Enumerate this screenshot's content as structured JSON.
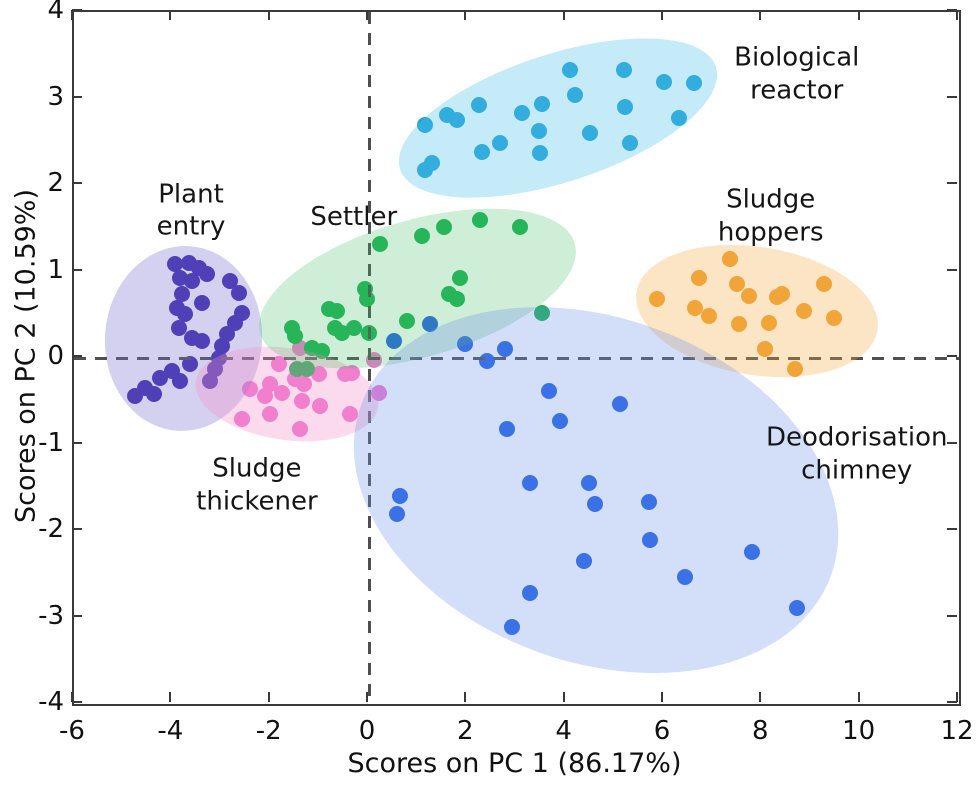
{
  "chart_data": {
    "type": "scatter",
    "title": "",
    "xlabel": "Scores on PC 1 (86.17%)",
    "ylabel": "Scores on PC 2 (10.59%)",
    "xlim": [
      -6,
      12
    ],
    "ylim": [
      -4,
      4
    ],
    "xticks": [
      -6,
      -4,
      -2,
      0,
      2,
      4,
      6,
      8,
      10,
      12
    ],
    "yticks": [
      -4,
      -3,
      -2,
      -1,
      0,
      1,
      2,
      3,
      4
    ],
    "zero_lines": true,
    "grid": false,
    "legend_position": "none",
    "marker_size_px": 16,
    "series": [
      {
        "key": "plant_entry",
        "name": "Plant entry",
        "color": "#3b2bad",
        "ellipse_color": "rgba(120,110,208,0.32)",
        "ellipse": {
          "cx": -3.77,
          "cy": 0.22,
          "rx": 1.6,
          "ry": 1.07,
          "rot_deg": 4
        },
        "label": {
          "text": "Plant\nentry",
          "x": -3.62,
          "y": 1.7
        },
        "points": [
          [
            -3.95,
            1.09
          ],
          [
            -3.66,
            1.1
          ],
          [
            -3.46,
            1.04
          ],
          [
            -3.29,
            0.97
          ],
          [
            -3.84,
            0.93
          ],
          [
            -3.6,
            0.89
          ],
          [
            -2.83,
            0.89
          ],
          [
            -2.64,
            0.75
          ],
          [
            -3.8,
            0.74
          ],
          [
            -3.4,
            0.64
          ],
          [
            -3.9,
            0.58
          ],
          [
            -3.74,
            0.51
          ],
          [
            -2.58,
            0.52
          ],
          [
            -2.73,
            0.41
          ],
          [
            -3.86,
            0.35
          ],
          [
            -3.6,
            0.23
          ],
          [
            -3.4,
            0.2
          ],
          [
            -2.89,
            0.28
          ],
          [
            -2.99,
            0.14
          ],
          [
            -3.05,
            0.0
          ],
          [
            -3.13,
            -0.13
          ],
          [
            -3.64,
            -0.07
          ],
          [
            -4.01,
            -0.15
          ],
          [
            -3.23,
            -0.27
          ],
          [
            -3.84,
            -0.27
          ],
          [
            -4.25,
            -0.23
          ],
          [
            -4.56,
            -0.35
          ],
          [
            -4.37,
            -0.42
          ],
          [
            -4.76,
            -0.44
          ]
        ]
      },
      {
        "key": "sludge_thickener",
        "name": "Sludge thickener",
        "color": "#f07ad2",
        "ellipse_color": "rgba(246,140,200,0.32)",
        "ellipse": {
          "cx": -1.67,
          "cy": -0.41,
          "rx": 1.87,
          "ry": 0.53,
          "rot_deg": 8
        },
        "label": {
          "text": "Sludge\nthickener",
          "x": -2.28,
          "y": -1.47
        },
        "points": [
          [
            -1.83,
            -0.07
          ],
          [
            -1.4,
            0.12
          ],
          [
            -1.5,
            -0.24
          ],
          [
            -1.02,
            -0.19
          ],
          [
            -2.01,
            -0.3
          ],
          [
            -2.42,
            -0.36
          ],
          [
            -1.32,
            -0.3
          ],
          [
            -2.11,
            -0.44
          ],
          [
            -1.77,
            -0.41
          ],
          [
            -1.36,
            -0.5
          ],
          [
            -1.0,
            -0.56
          ],
          [
            -2.01,
            -0.65
          ],
          [
            -2.58,
            -0.71
          ],
          [
            -1.4,
            -0.82
          ],
          [
            -0.49,
            -0.19
          ],
          [
            -0.39,
            -0.65
          ],
          [
            0.1,
            -0.02
          ],
          [
            -0.35,
            -0.17
          ],
          [
            0.2,
            -0.4
          ]
        ]
      },
      {
        "key": "settler",
        "name": "Settler",
        "color": "#1cb254",
        "ellipse_color": "rgba(70,190,100,0.26)",
        "ellipse": {
          "cx": 1.0,
          "cy": 0.81,
          "rx": 3.33,
          "ry": 0.79,
          "rot_deg": -16
        },
        "label": {
          "text": "Settler",
          "x": -0.31,
          "y": 1.63
        },
        "points": [
          [
            0.22,
            1.32
          ],
          [
            1.08,
            1.41
          ],
          [
            1.53,
            1.51
          ],
          [
            2.26,
            1.59
          ],
          [
            3.07,
            1.51
          ],
          [
            1.85,
            0.92
          ],
          [
            1.63,
            0.74
          ],
          [
            1.79,
            0.68
          ],
          [
            -0.08,
            0.8
          ],
          [
            -0.04,
            0.68
          ],
          [
            -0.81,
            0.57
          ],
          [
            -0.65,
            0.54
          ],
          [
            -1.57,
            0.35
          ],
          [
            -1.5,
            0.26
          ],
          [
            -0.69,
            0.35
          ],
          [
            -0.55,
            0.29
          ],
          [
            -0.31,
            0.35
          ],
          [
            0.0,
            0.29
          ],
          [
            0.77,
            0.43
          ],
          [
            3.52,
            0.52
          ],
          [
            -1.16,
            0.12
          ],
          [
            -0.96,
            0.08
          ],
          [
            -1.46,
            -0.13
          ],
          [
            -1.26,
            -0.13
          ]
        ]
      },
      {
        "key": "biological_reactor",
        "name": "Biological reactor",
        "color": "#25a3d8",
        "ellipse_color": "rgba(80,195,235,0.33)",
        "ellipse": {
          "cx": 3.84,
          "cy": 2.78,
          "rx": 3.38,
          "ry": 0.74,
          "rot_deg": -18
        },
        "label": {
          "text": "Biological\nreactor",
          "x": 8.7,
          "y": 3.28
        },
        "points": [
          [
            1.14,
            2.69
          ],
          [
            1.59,
            2.81
          ],
          [
            1.79,
            2.75
          ],
          [
            2.24,
            2.92
          ],
          [
            1.28,
            2.25
          ],
          [
            1.14,
            2.17
          ],
          [
            2.3,
            2.38
          ],
          [
            2.66,
            2.49
          ],
          [
            3.11,
            2.83
          ],
          [
            3.52,
            2.94
          ],
          [
            3.46,
            2.63
          ],
          [
            3.48,
            2.37
          ],
          [
            4.09,
            3.33
          ],
          [
            4.19,
            3.04
          ],
          [
            4.49,
            2.6
          ],
          [
            5.19,
            3.33
          ],
          [
            5.21,
            2.9
          ],
          [
            5.31,
            2.49
          ],
          [
            6.0,
            3.19
          ],
          [
            6.3,
            2.77
          ],
          [
            6.61,
            3.18
          ]
        ]
      },
      {
        "key": "sludge_hoppers",
        "name": "Sludge hoppers",
        "color": "#f0a437",
        "ellipse_color": "rgba(246,170,60,0.30)",
        "ellipse": {
          "cx": 7.89,
          "cy": 0.54,
          "rx": 2.48,
          "ry": 0.74,
          "rot_deg": 9
        },
        "label": {
          "text": "Sludge hoppers",
          "x": 8.17,
          "y": 1.64
        },
        "points": [
          [
            7.34,
            1.15
          ],
          [
            6.71,
            0.92
          ],
          [
            7.48,
            0.86
          ],
          [
            7.73,
            0.72
          ],
          [
            5.86,
            0.68
          ],
          [
            6.63,
            0.58
          ],
          [
            6.91,
            0.49
          ],
          [
            8.3,
            0.7
          ],
          [
            8.4,
            0.74
          ],
          [
            8.85,
            0.54
          ],
          [
            9.25,
            0.86
          ],
          [
            9.46,
            0.46
          ],
          [
            7.52,
            0.39
          ],
          [
            8.13,
            0.41
          ],
          [
            8.05,
            0.1
          ],
          [
            8.66,
            -0.13
          ]
        ]
      },
      {
        "key": "deodorisation_chimney",
        "name": "Deodorisation chimney",
        "color": "#2563e3",
        "ellipse_color": "rgba(110,145,235,0.30)",
        "ellipse": {
          "cx": 4.62,
          "cy": -1.53,
          "rx": 5.08,
          "ry": 1.99,
          "rot_deg": 20
        },
        "label": {
          "text": "Deodorisation\nchimney",
          "x": 9.92,
          "y": -1.11
        },
        "points": [
          [
            0.51,
            0.2
          ],
          [
            1.95,
            0.16
          ],
          [
            2.77,
            0.1
          ],
          [
            2.4,
            -0.03
          ],
          [
            1.24,
            0.39
          ],
          [
            3.66,
            -0.38
          ],
          [
            5.1,
            -0.53
          ],
          [
            3.88,
            -0.73
          ],
          [
            2.81,
            -0.82
          ],
          [
            3.27,
            -1.45
          ],
          [
            4.47,
            -1.45
          ],
          [
            0.63,
            -1.6
          ],
          [
            4.6,
            -1.69
          ],
          [
            0.57,
            -1.8
          ],
          [
            5.69,
            -1.66
          ],
          [
            5.71,
            -2.1
          ],
          [
            4.37,
            -2.35
          ],
          [
            3.27,
            -2.72
          ],
          [
            2.91,
            -3.11
          ],
          [
            7.79,
            -2.24
          ],
          [
            6.43,
            -2.53
          ],
          [
            8.7,
            -2.89
          ]
        ]
      }
    ]
  }
}
